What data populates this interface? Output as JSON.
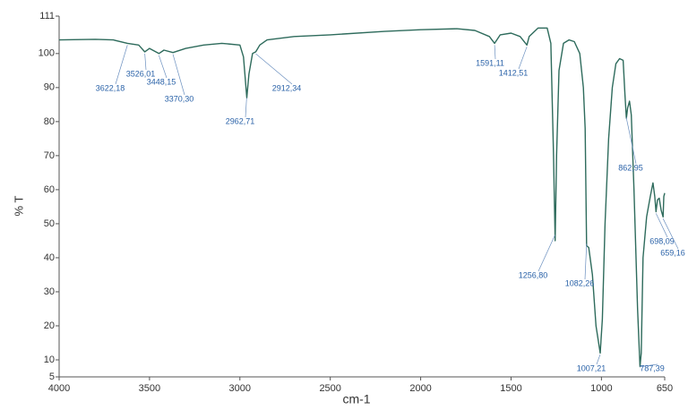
{
  "chart_data": {
    "type": "line",
    "xlabel": "cm-1",
    "ylabel": "% T",
    "xlim": [
      4000,
      650
    ],
    "ylim": [
      5,
      111
    ],
    "xticks": [
      4000,
      3500,
      3000,
      2500,
      2000,
      1500,
      1000,
      650
    ],
    "yticks": [
      5,
      10,
      20,
      30,
      40,
      50,
      60,
      70,
      80,
      90,
      100,
      111
    ],
    "series": [
      {
        "color": "#2e6b5c",
        "x": [
          4000,
          3800,
          3700,
          3622,
          3560,
          3526,
          3500,
          3448,
          3420,
          3370,
          3300,
          3200,
          3100,
          3000,
          2980,
          2962,
          2950,
          2930,
          2912,
          2890,
          2850,
          2700,
          2500,
          2200,
          2000,
          1800,
          1700,
          1620,
          1591,
          1560,
          1500,
          1450,
          1412,
          1400,
          1350,
          1300,
          1280,
          1265,
          1256,
          1248,
          1235,
          1210,
          1180,
          1150,
          1120,
          1100,
          1090,
          1082,
          1070,
          1050,
          1030,
          1007,
          995,
          980,
          960,
          940,
          920,
          900,
          880,
          870,
          862,
          855,
          845,
          835,
          820,
          800,
          787,
          780,
          770,
          750,
          730,
          715,
          705,
          698,
          690,
          680,
          670,
          659,
          655,
          650
        ],
        "values": [
          104,
          104.2,
          104,
          103,
          102.5,
          100.5,
          101.5,
          100,
          101,
          100.3,
          101.5,
          102.5,
          103,
          102.5,
          99,
          87,
          94,
          100,
          100.5,
          102.5,
          104,
          105,
          105.5,
          106.5,
          107,
          107.3,
          106.8,
          105,
          103,
          105.5,
          106,
          105,
          102.5,
          105,
          107.5,
          107.5,
          103,
          70,
          45,
          70,
          95,
          103,
          104,
          103.5,
          100,
          90,
          78,
          43.5,
          43,
          35,
          20,
          12,
          22,
          50,
          75,
          90,
          97,
          98.5,
          98,
          88,
          81,
          84,
          86,
          82,
          60,
          25,
          8,
          12,
          40,
          52,
          58,
          62,
          58,
          53.5,
          57,
          57.5,
          54,
          52,
          58,
          59
        ]
      }
    ],
    "annotations": [
      {
        "x": 3622.18,
        "label": "3622,18"
      },
      {
        "x": 3526.01,
        "label": "3526,01"
      },
      {
        "x": 3448.15,
        "label": "3448,15"
      },
      {
        "x": 3370.3,
        "label": "3370,30"
      },
      {
        "x": 2962.71,
        "label": "2962,71"
      },
      {
        "x": 2912.34,
        "label": "2912,34"
      },
      {
        "x": 1591.11,
        "label": "1591,11"
      },
      {
        "x": 1412.51,
        "label": "1412,51"
      },
      {
        "x": 1256.8,
        "label": "1256,80"
      },
      {
        "x": 1082.26,
        "label": "1082,26"
      },
      {
        "x": 1007.21,
        "label": "1007,21"
      },
      {
        "x": 787.39,
        "label": "787,39"
      },
      {
        "x": 862.95,
        "label": "862,95"
      },
      {
        "x": 698.09,
        "label": "698,09"
      },
      {
        "x": 659.16,
        "label": "659,16"
      }
    ]
  }
}
